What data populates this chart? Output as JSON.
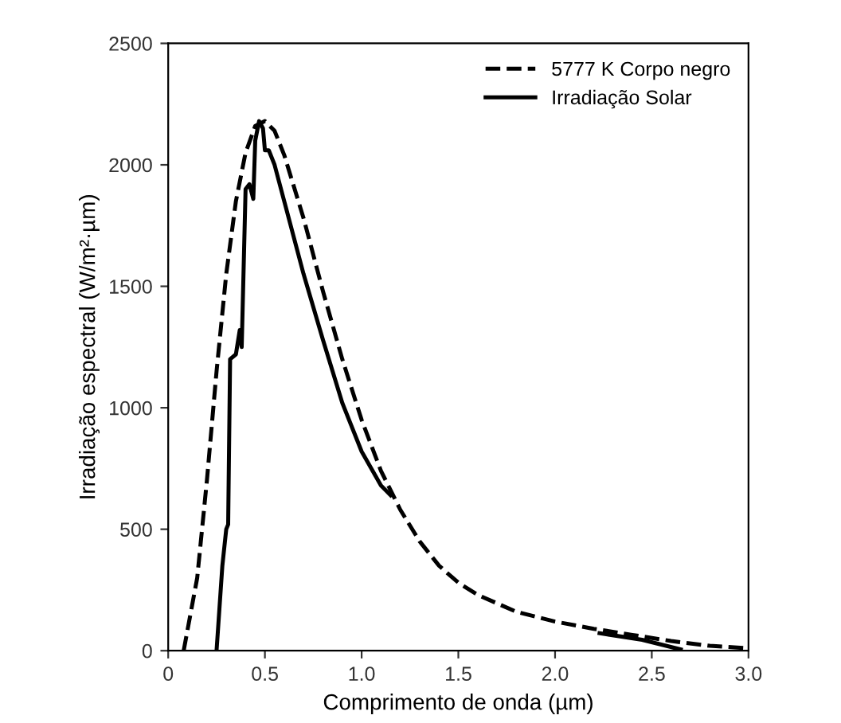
{
  "chart_data": {
    "type": "line",
    "xlabel": "Comprimento de onda (µm)",
    "ylabel": "Irradiação espectral (W/m²·µm)",
    "xlim": [
      0,
      3.0
    ],
    "ylim": [
      0,
      2500
    ],
    "xticks": [
      0,
      {
        "value": 0.5,
        "label": "0.5"
      },
      {
        "value": 1.0,
        "label": "1.0"
      },
      {
        "value": 1.5,
        "label": "1.5"
      },
      {
        "value": 2.0,
        "label": "2.0"
      },
      {
        "value": 2.5,
        "label": "2.5"
      },
      {
        "value": 3.0,
        "label": "3.0"
      }
    ],
    "yticks": [
      0,
      500,
      1000,
      1500,
      2000,
      2500
    ],
    "grid": false,
    "legend": "top right",
    "marker": "none",
    "series": [
      {
        "name": "5777 K Corpo negro",
        "color": "#000000",
        "line_style": "dashed",
        "x": [
          0.08,
          0.15,
          0.2,
          0.25,
          0.3,
          0.35,
          0.4,
          0.45,
          0.5,
          0.55,
          0.6,
          0.7,
          0.8,
          0.9,
          1.0,
          1.1,
          1.2,
          1.3,
          1.4,
          1.5,
          1.6,
          1.8,
          2.0,
          2.2,
          2.4,
          2.6,
          2.8,
          3.0
        ],
        "values": [
          0,
          300,
          700,
          1150,
          1550,
          1850,
          2050,
          2160,
          2180,
          2140,
          2040,
          1780,
          1480,
          1200,
          950,
          740,
          580,
          450,
          350,
          280,
          230,
          160,
          120,
          90,
          65,
          40,
          20,
          10
        ]
      },
      {
        "name": "Irradiação Solar",
        "color": "#000000",
        "line_style": "solid",
        "x": [
          0.25,
          0.28,
          0.3,
          0.31,
          0.32,
          0.35,
          0.37,
          0.38,
          0.4,
          0.42,
          0.44,
          0.45,
          0.47,
          0.49,
          0.5,
          0.52,
          0.55,
          0.6,
          0.7,
          0.8,
          0.9,
          1.0,
          1.1,
          1.15,
          1.5,
          2.23,
          2.45,
          2.65
        ],
        "values": [
          0,
          350,
          500,
          520,
          1200,
          1220,
          1320,
          1250,
          1900,
          1920,
          1860,
          2100,
          2180,
          2150,
          2060,
          2060,
          2000,
          1850,
          1550,
          1280,
          1020,
          820,
          680,
          640,
          null,
          72,
          45,
          5
        ]
      }
    ]
  }
}
